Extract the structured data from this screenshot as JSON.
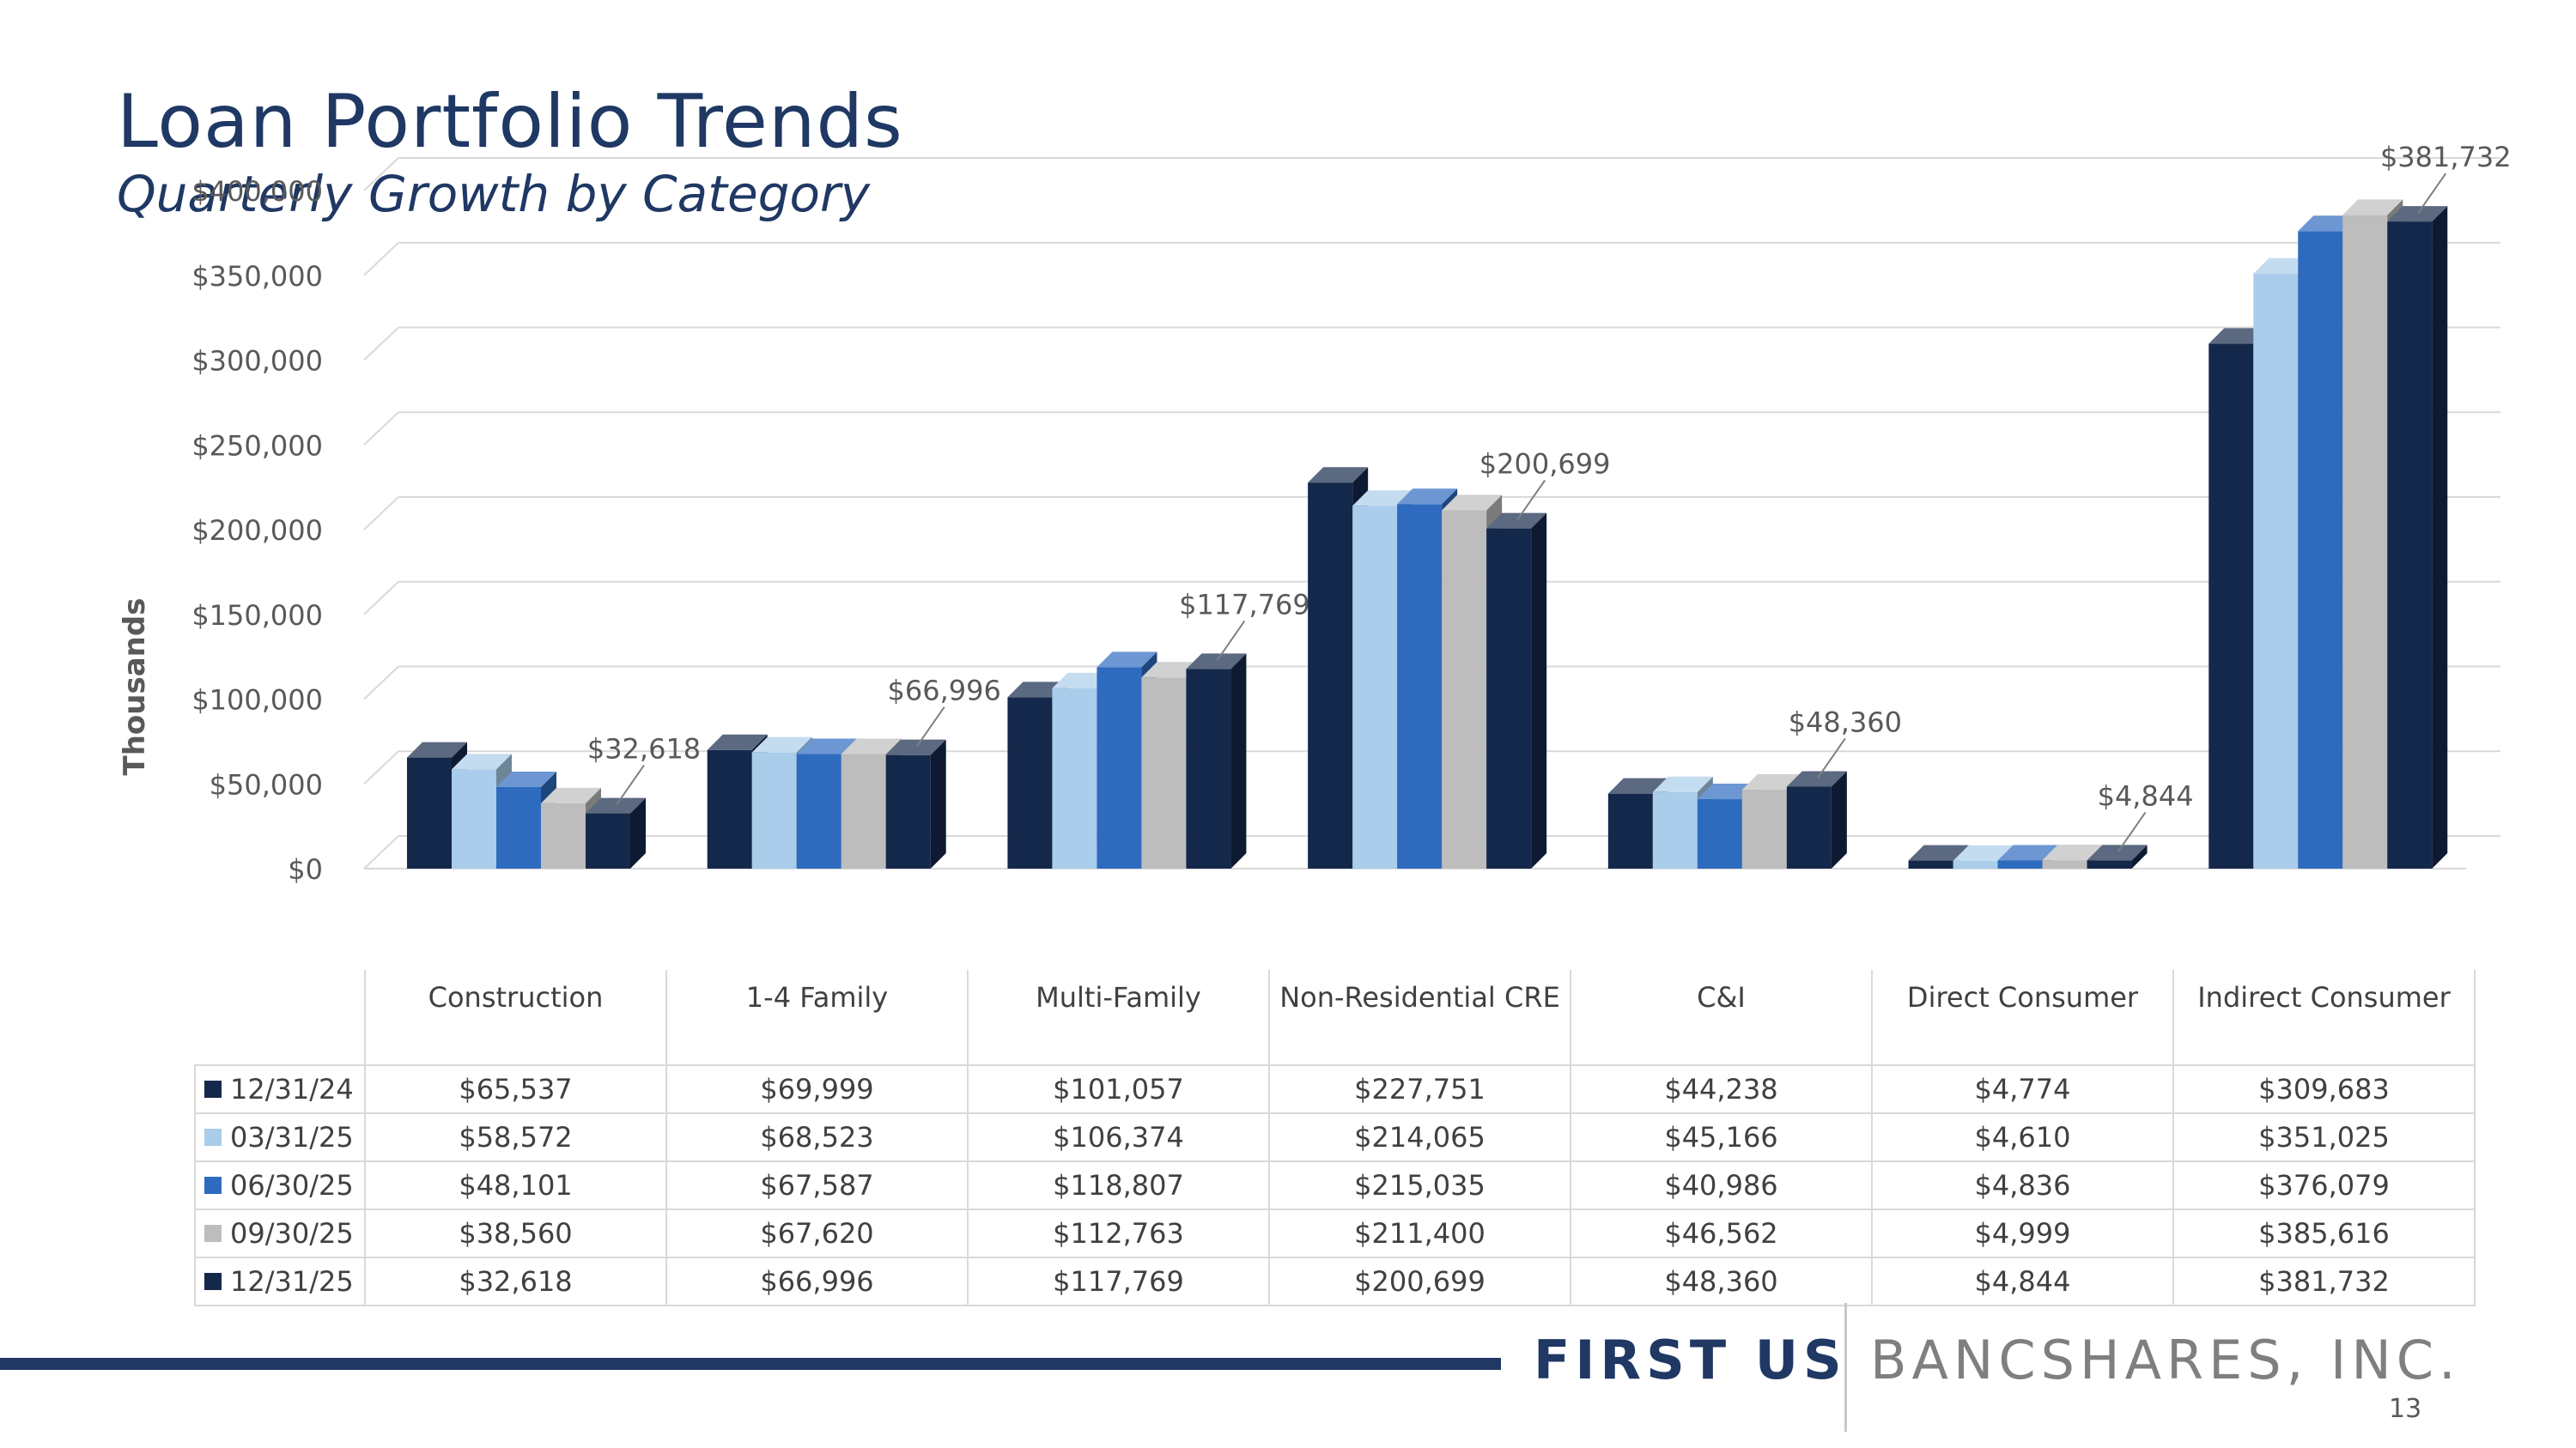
{
  "slide": {
    "title": "Loan Portfolio Trends",
    "subtitle": "Quarterly Growth by Category",
    "brand_primary": "FIRST US",
    "brand_secondary": "BANCSHARES, INC.",
    "page_number": "13",
    "accent_color": "#1f3864"
  },
  "chart_data": {
    "type": "bar",
    "ylabel": "Thousands",
    "ylim": [
      0,
      400000
    ],
    "yticks": [
      0,
      50000,
      100000,
      150000,
      200000,
      250000,
      300000,
      350000,
      400000
    ],
    "ytick_labels": [
      "$0",
      "$50,000",
      "$100,000",
      "$150,000",
      "$200,000",
      "$250,000",
      "$300,000",
      "$350,000",
      "$400,000"
    ],
    "categories": [
      "Construction",
      "1-4 Family",
      "Multi-Family",
      "Non-Residential CRE",
      "C&I",
      "Direct Consumer",
      "Indirect Consumer"
    ],
    "grid": true,
    "legend": "data-table",
    "series": [
      {
        "name": "12/31/24",
        "color": "#14284b",
        "values": [
          65537,
          69999,
          101057,
          227751,
          44238,
          4774,
          309683
        ],
        "labels": [
          "$65,537",
          "$69,999",
          "$101,057",
          "$227,751",
          "$44,238",
          "$4,774",
          "$309,683"
        ]
      },
      {
        "name": "03/31/25",
        "color": "#a9cdea",
        "values": [
          58572,
          68523,
          106374,
          214065,
          45166,
          4610,
          351025
        ],
        "labels": [
          "$58,572",
          "$68,523",
          "$106,374",
          "$214,065",
          "$45,166",
          "$4,610",
          "$351,025"
        ]
      },
      {
        "name": "06/30/25",
        "color": "#2e6bbf",
        "values": [
          48101,
          67587,
          118807,
          215035,
          40986,
          4836,
          376079
        ],
        "labels": [
          "$48,101",
          "$67,587",
          "$118,807",
          "$215,035",
          "$40,986",
          "$4,836",
          "$376,079"
        ]
      },
      {
        "name": "09/30/25",
        "color": "#bdbdbd",
        "values": [
          38560,
          67620,
          112763,
          211400,
          46562,
          4999,
          385616
        ],
        "labels": [
          "$38,560",
          "$67,620",
          "$112,763",
          "$211,400",
          "$46,562",
          "$4,999",
          "$385,616"
        ]
      },
      {
        "name": "12/31/25",
        "color": "#14284b",
        "values": [
          32618,
          66996,
          117769,
          200699,
          48360,
          4844,
          381732
        ],
        "labels": [
          "$32,618",
          "$66,996",
          "$117,769",
          "$200,699",
          "$48,360",
          "$4,844",
          "$381,732"
        ]
      }
    ],
    "annotations": [
      "$32,618",
      "$66,996",
      "$117,769",
      "$200,699",
      "$48,360",
      "$4,844",
      "$381,732"
    ]
  }
}
